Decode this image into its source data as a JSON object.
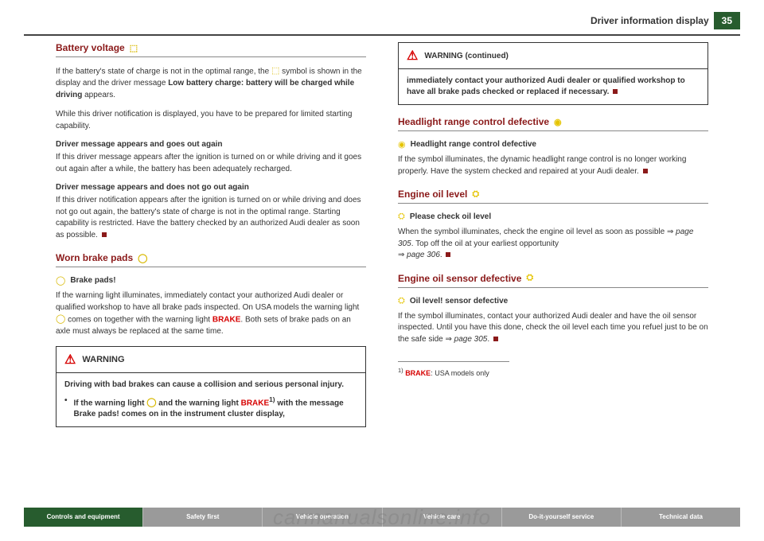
{
  "header": {
    "title": "Driver information display",
    "page_number": "35"
  },
  "col_left": {
    "sec1": {
      "title": "Battery voltage",
      "icon": "⬚",
      "p1a": "If the battery's state of charge is not in the optimal range, the ",
      "p1b": " symbol is shown in the display and the driver message ",
      "p1bold": "Low battery charge: battery will be charged while driving",
      "p1c": " appears.",
      "p2": "While this driver notification is displayed, you have to be prepared for limited starting capability.",
      "sub1": "Driver message appears and goes out again",
      "p3": "If this driver message appears after the ignition is turned on or while driving and it goes out again after a while, the battery has been adequately recharged.",
      "sub2": "Driver message appears and does not go out again",
      "p4": "If this driver notification appears after the ignition is turned on or while driving and does not go out again, the battery's state of charge is not in the optimal range. Starting capability is restricted. Have the battery checked by an authorized Audi dealer as soon as possible."
    },
    "sec2": {
      "title": "Worn brake pads",
      "icon": "◯",
      "indicator_label": "Brake pads!",
      "p1a": "If the warning light illuminates, immediately contact your authorized Audi dealer or qualified workshop to have all brake pads inspected. On USA models the warning light ",
      "p1b": " comes on together with the warning light ",
      "brake": "BRAKE",
      "p1c": ". Both sets of brake pads on an axle must always be replaced at the same time."
    },
    "warning": {
      "head": "WARNING",
      "body1": "Driving with bad brakes can cause a collision and serious personal injury.",
      "body2a": "If the warning light ",
      "body2b": " and the warning light ",
      "brake": "BRAKE",
      "sup": "1)",
      "body2c": " with the message Brake pads! comes on in the instrument cluster display,"
    }
  },
  "col_right": {
    "warning_cont": {
      "head": "WARNING (continued)",
      "body": "immediately contact your authorized Audi dealer or qualified workshop to have all brake pads checked or replaced if necessary."
    },
    "sec1": {
      "title": "Headlight range control defective",
      "icon": "◉",
      "indicator_label": "Headlight range control defective",
      "p1": "If the symbol illuminates, the dynamic headlight range control is no longer working properly. Have the system checked and repaired at your Audi dealer."
    },
    "sec2": {
      "title": "Engine oil level",
      "icon": "⛭",
      "indicator_label": "Please check oil level",
      "ref1": "page 305",
      "ref2": "page 306",
      "p1a": "When the symbol illuminates, check the engine oil level as soon as possible ",
      "p1b": ". Top off the oil at your earliest opportunity "
    },
    "sec3": {
      "title": "Engine oil sensor defective",
      "icon": "⛭",
      "indicator_label": "Oil level! sensor defective",
      "ref": "page 305",
      "p1a": "If the symbol illuminates, contact your authorized Audi dealer and have the oil sensor inspected. Until you have this done, check the oil level each time you refuel just to be on the safe side "
    },
    "footnote": {
      "sup": "1)",
      "brake": "BRAKE",
      "text": ": USA models only"
    }
  },
  "nav": {
    "items": [
      "Controls and equipment",
      "Safety first",
      "Vehicle operation",
      "Vehicle care",
      "Do-it-yourself service",
      "Technical data"
    ]
  },
  "watermark": "carmanualsonline.info"
}
